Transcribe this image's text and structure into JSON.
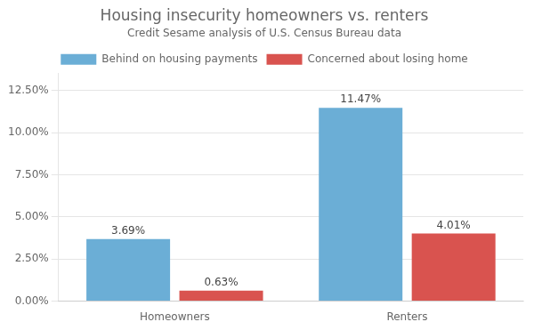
{
  "chart_data": {
    "type": "bar",
    "title": "Housing insecurity homeowners vs. renters",
    "subtitle": "Credit Sesame analysis of U.S. Census Bureau data",
    "categories": [
      "Homeowners",
      "Renters"
    ],
    "series": [
      {
        "name": "Behind on housing payments",
        "color": "#6baed6",
        "values": [
          3.69,
          11.47
        ],
        "value_labels": [
          "3.69%",
          "11.47%"
        ]
      },
      {
        "name": "Concerned about losing home",
        "color": "#d9534f",
        "values": [
          0.63,
          4.01
        ],
        "value_labels": [
          "0.63%",
          "4.01%"
        ]
      }
    ],
    "ylim": [
      0,
      13.5
    ],
    "yticks": [
      {
        "value": 0.0,
        "label": "0.00%"
      },
      {
        "value": 2.5,
        "label": "2.50%"
      },
      {
        "value": 5.0,
        "label": "5.00%"
      },
      {
        "value": 7.5,
        "label": "7.50%"
      },
      {
        "value": 10.0,
        "label": "10.00%"
      },
      {
        "value": 12.5,
        "label": "12.50%"
      }
    ],
    "grid": true,
    "legend": "top",
    "data_labels": true
  }
}
